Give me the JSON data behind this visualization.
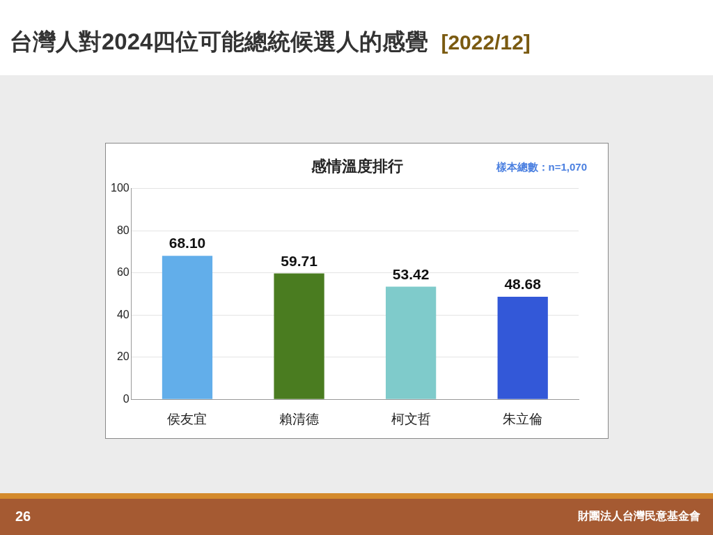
{
  "chart_data": {
    "type": "bar",
    "title": "台灣人對2024四位可能總統候選人的感覺",
    "subtitle": "[2022/12]",
    "annotations": [
      "感情溫度排行",
      "樣本總數：n=1,070",
      "26",
      "財團法人台灣民意基金會"
    ],
    "categories": [
      "侯友宜",
      "賴清德",
      "柯文哲",
      "朱立倫"
    ],
    "values": [
      68.1,
      59.71,
      53.42,
      48.68
    ],
    "colors": [
      "#62aeea",
      "#4a7c20",
      "#7fcbcb",
      "#3358d8"
    ],
    "ylim": [
      0,
      100
    ],
    "yticks": [
      0,
      20,
      40,
      60,
      80,
      100
    ],
    "value_labels": [
      "68.10",
      "59.71",
      "53.42",
      "48.68"
    ],
    "grid": "y",
    "legend": false
  }
}
